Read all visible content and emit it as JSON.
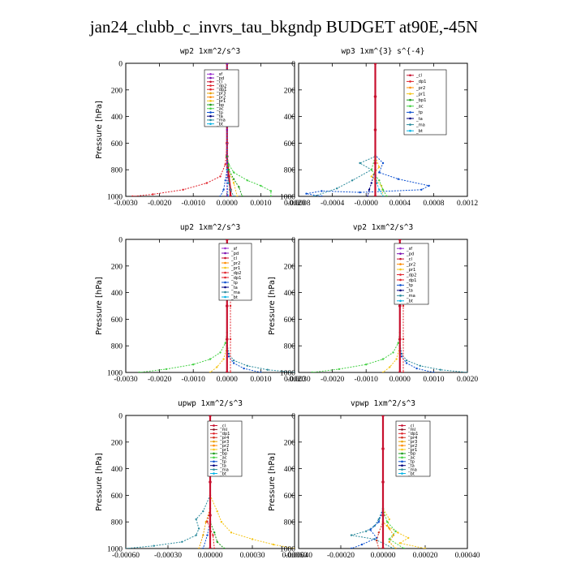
{
  "title": "jan24_clubb_c_invrs_tau_bkgndp  BUDGET at90E,-45N",
  "colors": {
    "sf": "#9b30d0",
    "pd": "#7a0fb0",
    "cl": "#c8102e",
    "ml": "#8a1020",
    "dp1": "#e0242c",
    "dp2": "#e0242c",
    "pr1": "#f5c518",
    "pr2": "#ff8c00",
    "pr3": "#e8a000",
    "pr4": "#d03020",
    "bp": "#1a9c1a",
    "bp1": "#1a9c1a",
    "ac": "#44d144",
    "tp": "#0a4fd0",
    "ta": "#000080",
    "ma": "#2a8a9c",
    "bt": "#00b4e6"
  },
  "chart_data": [
    {
      "type": "line",
      "title": "wp2  1xm^2/s^3",
      "ylabel": "Pressure [hPa]",
      "yticks": [
        "0",
        "200",
        "400",
        "600",
        "800",
        "1000"
      ],
      "xticks": [
        "-0.0030",
        "-0.0020",
        "-0.0010",
        "0.0000",
        "0.0010",
        "0.0020"
      ],
      "xlim": [
        -0.003,
        0.002
      ],
      "ylim": [
        1000,
        0
      ],
      "legend": [
        "_sf",
        "_pd",
        "_cl",
        "_dp2",
        "_dp1",
        "_pr3",
        "_pr2",
        "_pr1",
        "_bp",
        "_ac",
        "_tp",
        "_ta",
        "_ma",
        "_bt"
      ],
      "series": [
        {
          "key": "cl",
          "x": [
            0,
            0,
            0,
            2e-05,
            5e-05,
            0.0001,
            0.0001
          ],
          "y": [
            0,
            600,
            700,
            780,
            850,
            950,
            1000
          ]
        },
        {
          "key": "dp2",
          "x": [
            0,
            0,
            -5e-05,
            -0.0002,
            -0.0006,
            -0.0013,
            -0.0022,
            -0.0028
          ],
          "y": [
            0,
            600,
            760,
            850,
            900,
            950,
            985,
            1000
          ]
        },
        {
          "key": "pr1",
          "x": [
            0,
            0,
            5e-05,
            0.0002,
            0.0003
          ],
          "y": [
            0,
            700,
            800,
            900,
            1000
          ]
        },
        {
          "key": "ac",
          "x": [
            0,
            0,
            5e-05,
            0.0002,
            0.0006,
            0.001,
            0.0013,
            0.0013
          ],
          "y": [
            0,
            700,
            760,
            820,
            880,
            920,
            960,
            1000
          ]
        },
        {
          "key": "bp",
          "x": [
            0,
            0,
            5e-05,
            0.0002,
            0.00035,
            0.00045
          ],
          "y": [
            0,
            700,
            800,
            870,
            930,
            1000
          ]
        },
        {
          "key": "tp",
          "x": [
            0,
            0,
            -5e-05,
            -0.0001,
            -0.0002
          ],
          "y": [
            0,
            800,
            880,
            950,
            1000
          ]
        },
        {
          "key": "ma",
          "x": [
            0,
            0,
            5e-05,
            0.0001,
            0.0002
          ],
          "y": [
            0,
            800,
            900,
            950,
            1000
          ]
        },
        {
          "key": "bt",
          "x": [
            0,
            0,
            1e-05,
            3e-05
          ],
          "y": [
            0,
            800,
            900,
            1000
          ]
        },
        {
          "key": "pd",
          "x": [
            0,
            0,
            0,
            0,
            0
          ],
          "y": [
            0,
            250,
            500,
            750,
            1000
          ]
        }
      ]
    },
    {
      "type": "line",
      "title": "wp3  1xm^{3} s^{-4}",
      "ylabel": "",
      "yticks": [
        "0",
        "200",
        "400",
        "600",
        "800",
        "1000"
      ],
      "xticks": [
        "-0.0008",
        "-0.0004",
        "-0.0000",
        "0.0004",
        "0.0008",
        "0.0012"
      ],
      "xlim": [
        -0.001,
        0.0012
      ],
      "ylim": [
        1000,
        0
      ],
      "legend": [
        "_cl",
        "_dp1",
        "_pr2",
        "_pr1",
        "_bp1",
        "_ac",
        "_tp",
        "_ta",
        "_ma",
        "_bt"
      ],
      "series": [
        {
          "key": "tp",
          "x": [
            0,
            0,
            0.0001,
            5e-05,
            0.0003,
            0.0007,
            0.0006,
            -0.0002,
            -0.0007,
            -0.0009,
            -0.0007
          ],
          "y": [
            0,
            690,
            750,
            820,
            870,
            920,
            950,
            970,
            960,
            980,
            1000
          ]
        },
        {
          "key": "ta",
          "x": [
            0,
            0,
            -5e-05,
            -8e-05,
            -0.0001
          ],
          "y": [
            0,
            800,
            900,
            950,
            1000
          ]
        },
        {
          "key": "ma",
          "x": [
            0,
            0,
            -0.0002,
            -5e-05,
            -0.0003,
            -0.0005,
            -0.0008
          ],
          "y": [
            0,
            700,
            750,
            800,
            880,
            940,
            1000
          ]
        },
        {
          "key": "pr1",
          "x": [
            0,
            0,
            5e-05,
            -5e-05,
            8e-05,
            0.0001
          ],
          "y": [
            0,
            700,
            780,
            850,
            920,
            1000
          ]
        },
        {
          "key": "ac",
          "x": [
            0,
            0,
            -5e-05,
            5e-05,
            0.0001,
            0.00015
          ],
          "y": [
            0,
            700,
            800,
            880,
            950,
            1000
          ]
        },
        {
          "key": "bt",
          "x": [
            0,
            0,
            2e-05,
            5e-05,
            0.0001
          ],
          "y": [
            0,
            800,
            900,
            950,
            1000
          ]
        },
        {
          "key": "cl",
          "x": [
            0,
            0,
            0,
            0,
            0
          ],
          "y": [
            0,
            250,
            500,
            750,
            1000
          ]
        }
      ]
    },
    {
      "type": "line",
      "title": "up2  1xm^2/s^3",
      "ylabel": "Pressure [hPa]",
      "yticks": [
        "0",
        "200",
        "400",
        "600",
        "800",
        "1000"
      ],
      "xticks": [
        "-0.0030",
        "-0.0020",
        "-0.0010",
        "0.0000",
        "0.0010",
        "0.0020"
      ],
      "xlim": [
        -0.003,
        0.002
      ],
      "ylim": [
        1000,
        0
      ],
      "legend": [
        "_sf",
        "_pd",
        "_cl",
        "_pr2",
        "_pr1",
        "_dp2",
        "_dp1",
        "_tp",
        "_ta",
        "_ma",
        "_bt"
      ],
      "series": [
        {
          "key": "ac",
          "x": [
            0,
            0,
            -5e-05,
            -0.0002,
            -0.0005,
            -0.001,
            -0.0018,
            -0.0026
          ],
          "y": [
            0,
            700,
            780,
            850,
            900,
            940,
            975,
            1000
          ]
        },
        {
          "key": "pr1",
          "x": [
            0,
            0,
            -0.0001,
            -0.0003,
            -0.0005
          ],
          "y": [
            0,
            800,
            900,
            960,
            1000
          ]
        },
        {
          "key": "ma",
          "x": [
            0,
            0,
            5e-05,
            0.0002,
            0.0006,
            0.0012,
            0.002
          ],
          "y": [
            0,
            780,
            860,
            910,
            950,
            980,
            1000
          ]
        },
        {
          "key": "tp",
          "x": [
            0,
            0,
            5e-05,
            0.0002,
            0.0005,
            0.001
          ],
          "y": [
            0,
            800,
            880,
            930,
            970,
            1000
          ]
        },
        {
          "key": "dp1",
          "x": [
            0,
            0.0001,
            0.0001,
            0.0001,
            0.0001
          ],
          "y": [
            0,
            250,
            500,
            750,
            1000
          ]
        },
        {
          "key": "cl",
          "x": [
            0,
            0,
            0,
            0,
            0
          ],
          "y": [
            0,
            250,
            500,
            750,
            1000
          ]
        }
      ]
    },
    {
      "type": "line",
      "title": "vp2  1xm^2/s^3",
      "ylabel": "Pressure [hPa]",
      "yticks": [
        "0",
        "200",
        "400",
        "600",
        "800",
        "1000"
      ],
      "xticks": [
        "-0.0030",
        "-0.0020",
        "-0.0010",
        "0.0000",
        "0.0010",
        "0.0020"
      ],
      "xlim": [
        -0.003,
        0.002
      ],
      "ylim": [
        1000,
        0
      ],
      "legend": [
        "_sf",
        "_pd",
        "_cl",
        "_pr2",
        "_pr1",
        "_dp2",
        "_dp1",
        "_tp",
        "_ta",
        "_ma",
        "_bt"
      ],
      "series": [
        {
          "key": "ac",
          "x": [
            0,
            0,
            -5e-05,
            -0.0002,
            -0.0005,
            -0.001,
            -0.0018,
            -0.0026
          ],
          "y": [
            0,
            700,
            780,
            850,
            900,
            940,
            975,
            1000
          ]
        },
        {
          "key": "pr1",
          "x": [
            0,
            0,
            -0.0001,
            -0.0003,
            -0.0005
          ],
          "y": [
            0,
            800,
            900,
            960,
            1000
          ]
        },
        {
          "key": "ma",
          "x": [
            0,
            0,
            5e-05,
            0.0002,
            0.0006,
            0.0012,
            0.002
          ],
          "y": [
            0,
            780,
            860,
            910,
            950,
            980,
            1000
          ]
        },
        {
          "key": "tp",
          "x": [
            0,
            0,
            5e-05,
            0.0002,
            0.0005,
            0.001
          ],
          "y": [
            0,
            800,
            880,
            930,
            970,
            1000
          ]
        },
        {
          "key": "dp1",
          "x": [
            0,
            0.0001,
            0.0001,
            0.0001,
            0.0001
          ],
          "y": [
            0,
            250,
            500,
            750,
            1000
          ]
        },
        {
          "key": "cl",
          "x": [
            0,
            0,
            0,
            0,
            0
          ],
          "y": [
            0,
            250,
            500,
            750,
            1000
          ]
        }
      ]
    },
    {
      "type": "line",
      "title": "upwp  1xm^2/s^3",
      "ylabel": "Pressure [hPa]",
      "yticks": [
        "0",
        "200",
        "400",
        "600",
        "800",
        "1000"
      ],
      "xticks": [
        "-0.00060",
        "-0.00030",
        "0.00000",
        "0.00030",
        "0.00060"
      ],
      "xlim": [
        -0.0006,
        0.0006
      ],
      "ylim": [
        1000,
        0
      ],
      "legend": [
        "_cl",
        "_ml",
        "_dp1",
        "_pr4",
        "_pr3",
        "_pr2",
        "_pr1",
        "_bp",
        "_ac",
        "_tp",
        "_ta",
        "_ma",
        "_bt"
      ],
      "series": [
        {
          "key": "ma",
          "x": [
            0,
            0,
            -5e-05,
            -0.0001,
            -8e-05,
            -0.0001,
            -0.0002,
            -0.0004,
            -0.0006
          ],
          "y": [
            0,
            600,
            720,
            780,
            850,
            900,
            950,
            980,
            1000
          ]
        },
        {
          "key": "pr1",
          "x": [
            0,
            0,
            5e-05,
            8e-05,
            0.00015,
            0.0003,
            0.00045,
            0.0006
          ],
          "y": [
            0,
            600,
            720,
            800,
            880,
            930,
            970,
            1000
          ]
        },
        {
          "key": "pr3",
          "x": [
            0,
            0,
            -3e-05,
            -5e-05,
            -8e-05
          ],
          "y": [
            0,
            700,
            800,
            900,
            1000
          ]
        },
        {
          "key": "bp",
          "x": [
            0,
            0,
            3e-05,
            5e-05,
            0.0001
          ],
          "y": [
            0,
            800,
            880,
            950,
            1000
          ]
        },
        {
          "key": "tp",
          "x": [
            0,
            0,
            -2e-05,
            -5e-05
          ],
          "y": [
            0,
            800,
            900,
            1000
          ]
        },
        {
          "key": "dp1",
          "x": [
            0,
            0,
            -2e-05,
            2e-05,
            3e-05
          ],
          "y": [
            0,
            700,
            800,
            900,
            1000
          ]
        },
        {
          "key": "cl",
          "x": [
            0,
            0,
            0,
            0,
            0
          ],
          "y": [
            0,
            250,
            500,
            750,
            1000
          ]
        }
      ]
    },
    {
      "type": "line",
      "title": "vpwp  1xm^2/s^3",
      "ylabel": "Pressure [hPa]",
      "yticks": [
        "0",
        "200",
        "400",
        "600",
        "800",
        "1000"
      ],
      "xticks": [
        "-0.00040",
        "-0.00020",
        "0.00000",
        "0.00020",
        "0.00040"
      ],
      "xlim": [
        -0.0004,
        0.0004
      ],
      "ylim": [
        1000,
        0
      ],
      "legend": [
        "_cl",
        "_ml",
        "_dp1",
        "_pr4",
        "_pr3",
        "_pr2",
        "_pr1",
        "_bp",
        "_ac",
        "_tp",
        "_ta",
        "_ma",
        "_bt"
      ],
      "series": [
        {
          "key": "ma",
          "x": [
            0,
            0,
            -2e-05,
            -4e-05,
            -8e-05,
            -0.00015,
            -4e-05,
            0,
            5e-05
          ],
          "y": [
            0,
            700,
            780,
            830,
            870,
            900,
            930,
            960,
            1000
          ]
        },
        {
          "key": "pr1",
          "x": [
            0,
            0,
            3e-05,
            2e-05,
            7e-05,
            0.00012,
            8e-05,
            0.0002
          ],
          "y": [
            0,
            700,
            780,
            830,
            880,
            920,
            960,
            1000
          ]
        },
        {
          "key": "tp",
          "x": [
            0,
            0,
            -2e-05,
            -6e-05,
            -3e-05,
            -0.0001,
            -0.00015
          ],
          "y": [
            0,
            700,
            800,
            860,
            920,
            970,
            1000
          ]
        },
        {
          "key": "ac",
          "x": [
            0,
            0,
            2e-05,
            6e-05,
            3e-05,
            0.0001
          ],
          "y": [
            0,
            700,
            800,
            870,
            930,
            1000
          ]
        },
        {
          "key": "pr3",
          "x": [
            0,
            0,
            3e-05,
            5e-05,
            3e-05,
            6e-05
          ],
          "y": [
            0,
            800,
            850,
            900,
            950,
            1000
          ]
        },
        {
          "key": "pr4",
          "x": [
            0,
            0,
            -2e-05,
            -3e-05,
            -2e-05
          ],
          "y": [
            0,
            800,
            880,
            940,
            1000
          ]
        },
        {
          "key": "cl",
          "x": [
            0,
            0,
            0,
            0,
            0
          ],
          "y": [
            0,
            250,
            500,
            750,
            1000
          ]
        }
      ]
    }
  ]
}
